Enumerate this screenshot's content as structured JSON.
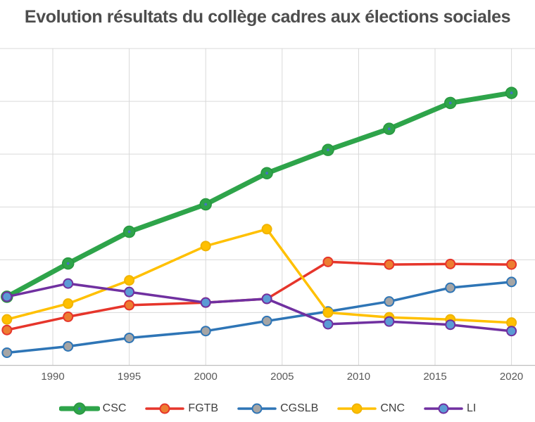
{
  "title": "Evolution résultats du collège cadres aux élections sociales",
  "chart_data": {
    "type": "line",
    "title": "Evolution résultats du collège cadres aux élections sociales",
    "x": [
      1987,
      1991,
      1995,
      2000,
      2004,
      2008,
      2012,
      2016,
      2020
    ],
    "x_tick_labels": [
      "1990",
      "1995",
      "2000",
      "2005",
      "2010",
      "2015",
      "2020"
    ],
    "x_tick_years": [
      1990,
      1995,
      2000,
      2005,
      2010,
      2015,
      2020
    ],
    "xlabel": "",
    "ylabel": "",
    "ylim": [
      0,
      60
    ],
    "y_grid_step": 10,
    "grid": true,
    "legend_position": "bottom",
    "series": [
      {
        "name": "CSC",
        "values": [
          13.0,
          19.3,
          25.3,
          30.5,
          36.4,
          40.8,
          44.8,
          49.7,
          51.6
        ],
        "line_color": "#2EA44A",
        "line_width": 7,
        "marker_fill": "#2EA44A",
        "marker_stroke": "#27963F",
        "marker_radius": 8,
        "marker_center_dot": "#4472C4"
      },
      {
        "name": "FGTB",
        "values": [
          6.7,
          9.2,
          11.4,
          11.9,
          12.6,
          19.6,
          19.1,
          19.2,
          19.1
        ],
        "line_color": "#E6352B",
        "line_width": 3.5,
        "marker_fill": "#ED7D31",
        "marker_stroke": "#E6352B",
        "marker_radius": 6.5
      },
      {
        "name": "CGSLB",
        "values": [
          2.4,
          3.6,
          5.2,
          6.5,
          8.4,
          10.2,
          12.1,
          14.7,
          15.8
        ],
        "line_color": "#2E75B6",
        "line_width": 3.5,
        "marker_fill": "#A5A5A5",
        "marker_stroke": "#2E75B6",
        "marker_radius": 6.5
      },
      {
        "name": "CNC",
        "values": [
          8.7,
          11.7,
          16.1,
          22.6,
          25.8,
          10.0,
          9.1,
          8.7,
          8.1
        ],
        "line_color": "#FFC000",
        "line_width": 3.5,
        "marker_fill": "#FFC000",
        "marker_stroke": "#F0B400",
        "marker_radius": 6.5
      },
      {
        "name": "LI",
        "values": [
          13.0,
          15.5,
          13.9,
          11.9,
          12.6,
          7.8,
          8.3,
          7.7,
          6.5
        ],
        "line_color": "#7030A0",
        "line_width": 3.5,
        "marker_fill": "#5B9BD5",
        "marker_stroke": "#7030A0",
        "marker_radius": 6.5
      }
    ],
    "colors": {
      "background": "#FFFFFF",
      "gridline": "#D9D9D9",
      "axis_line": "#BFBFBF",
      "title_text": "#4D4D4D",
      "tick_text": "#595959",
      "legend_text": "#3F3F3F"
    }
  }
}
